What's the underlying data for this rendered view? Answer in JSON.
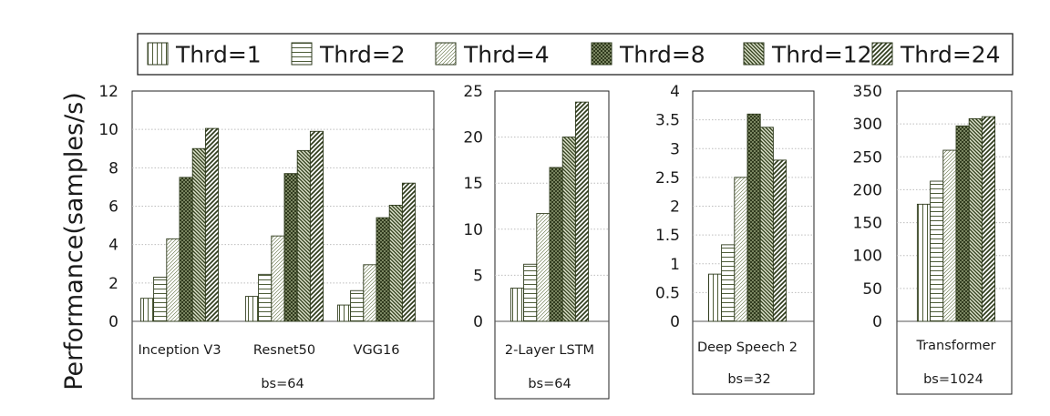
{
  "chart_data": {
    "type": "bar",
    "ylabel": "Performance(samples/s)",
    "colors": {
      "stroke": "#2e3a1c",
      "frame": "#222222",
      "grid": "#bdbdbd"
    },
    "legend": {
      "placement": "top",
      "entries": [
        "Thrd=1",
        "Thrd=2",
        "Thrd=4",
        "Thrd=8",
        "Thrd=12",
        "Thrd=24"
      ]
    },
    "panels": [
      {
        "id": "cnn",
        "ylim": [
          0,
          12
        ],
        "yticks": [
          "0",
          "2",
          "4",
          "6",
          "8",
          "10",
          "12"
        ],
        "yticks_values": [
          0,
          2,
          4,
          6,
          8,
          10,
          12
        ],
        "group_label": "bs=64",
        "categories": [
          "Inception V3",
          "Resnet50",
          "VGG16"
        ],
        "values": [
          [
            1.2,
            2.3,
            4.3,
            7.5,
            9.0,
            10.05
          ],
          [
            1.3,
            2.45,
            4.45,
            7.7,
            8.9,
            9.9
          ],
          [
            0.85,
            1.6,
            2.95,
            5.4,
            6.05,
            7.2
          ]
        ]
      },
      {
        "id": "lstm",
        "ylim": [
          0,
          25
        ],
        "yticks": [
          "0",
          "5",
          "10",
          "15",
          "20",
          "25"
        ],
        "yticks_values": [
          0,
          5,
          10,
          15,
          20,
          25
        ],
        "group_label": "bs=64",
        "categories": [
          "2-Layer LSTM"
        ],
        "values": [
          [
            3.6,
            6.2,
            11.7,
            16.7,
            20.0,
            23.8
          ]
        ]
      },
      {
        "id": "ds2",
        "ylim": [
          0,
          4
        ],
        "yticks": [
          "0",
          "0.5",
          "1",
          "1.5",
          "2",
          "2.5",
          "3",
          "3.5",
          "4"
        ],
        "yticks_values": [
          0,
          0.5,
          1,
          1.5,
          2,
          2.5,
          3,
          3.5,
          4
        ],
        "group_label": "bs=32",
        "categories": [
          "Deep Speech 2"
        ],
        "values": [
          [
            0.82,
            1.33,
            2.5,
            3.6,
            3.37,
            2.8
          ]
        ]
      },
      {
        "id": "transformer",
        "ylim": [
          0,
          350
        ],
        "yticks": [
          "0",
          "50",
          "100",
          "150",
          "200",
          "250",
          "300",
          "350"
        ],
        "yticks_values": [
          0,
          50,
          100,
          150,
          200,
          250,
          300,
          350
        ],
        "group_label": "bs=1024",
        "categories": [
          "Transformer"
        ],
        "values": [
          [
            178,
            213,
            260,
            297,
            308,
            311
          ]
        ]
      }
    ]
  }
}
